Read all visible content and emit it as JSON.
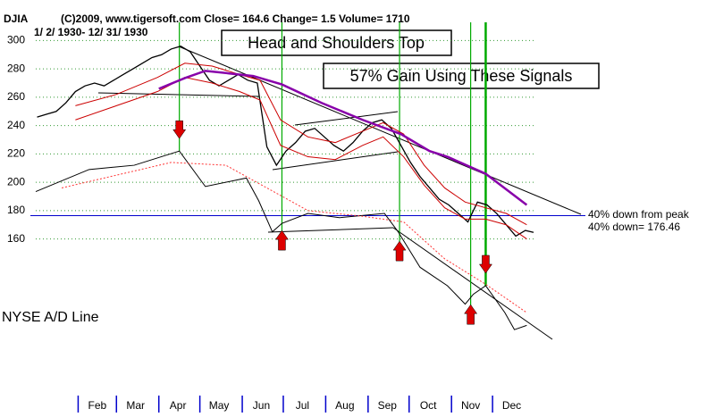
{
  "chart_data": {
    "type": "line",
    "title": "DJIA",
    "header": "(C)2009, www.tigersoft.com    Close= 164.6  Change= 1.5 Volume= 1710",
    "date_range": "1/ 2/ 1930- 12/ 31/ 1930",
    "annotations": [
      "Head and Shoulders Top",
      "57% Gain Using These Signals",
      "NYSE A/D Line"
    ],
    "reference_line": {
      "value": 176.46,
      "color": "#0000cc",
      "labels": [
        "40% down from peak",
        "40% down= 176.46"
      ]
    },
    "xlim": [
      1,
      365
    ],
    "ylim": [
      52,
      316
    ],
    "yticks": [
      160,
      180,
      200,
      220,
      240,
      260,
      280,
      300
    ],
    "xticks": [
      {
        "value": 32,
        "label": "Feb"
      },
      {
        "value": 60,
        "label": "Mar"
      },
      {
        "value": 91,
        "label": "Apr"
      },
      {
        "value": 121,
        "label": "May"
      },
      {
        "value": 152,
        "label": "Jun"
      },
      {
        "value": 182,
        "label": "Jul"
      },
      {
        "value": 213,
        "label": "Aug"
      },
      {
        "value": 244,
        "label": "Sep"
      },
      {
        "value": 274,
        "label": "Oct"
      },
      {
        "value": 305,
        "label": "Nov"
      },
      {
        "value": 335,
        "label": "Dec"
      }
    ],
    "grid": true,
    "series": [
      {
        "color": "#000000",
        "width": 1.3,
        "x": [
          2,
          9,
          16,
          23,
          30,
          37,
          44,
          51,
          58,
          65,
          72,
          79,
          86,
          93,
          100,
          107,
          114,
          121,
          128,
          135,
          142,
          149,
          156,
          163,
          170,
          177,
          184,
          191,
          198,
          205,
          212,
          219,
          226,
          233,
          240,
          247,
          254,
          261,
          268,
          275,
          282,
          289,
          296,
          303,
          310,
          317,
          324,
          331,
          338,
          345,
          352,
          359,
          365
        ],
        "values": [
          246,
          248,
          250,
          256,
          264,
          268,
          270,
          268,
          272,
          276,
          280,
          284,
          288,
          290,
          294,
          296,
          292,
          282,
          272,
          268,
          272,
          276,
          272,
          270,
          225,
          212,
          222,
          228,
          236,
          238,
          232,
          226,
          222,
          228,
          236,
          242,
          244,
          238,
          226,
          214,
          204,
          196,
          188,
          184,
          178,
          172,
          186,
          184,
          178,
          170,
          162,
          166,
          164.6
        ]
      },
      {
        "color": "#cc0000",
        "width": 1,
        "x": [
          30,
          60,
          90,
          110,
          130,
          150,
          165,
          180,
          200,
          220,
          240,
          255,
          270,
          285,
          300,
          315,
          330,
          345,
          360
        ],
        "values": [
          254,
          262,
          274,
          284,
          282,
          276,
          272,
          244,
          232,
          228,
          236,
          242,
          234,
          212,
          196,
          186,
          182,
          178,
          170
        ]
      },
      {
        "color": "#cc0000",
        "width": 1,
        "x": [
          30,
          60,
          90,
          110,
          130,
          150,
          165,
          180,
          200,
          220,
          240,
          255,
          270,
          285,
          300,
          315,
          330,
          345,
          360
        ],
        "values": [
          244,
          254,
          264,
          274,
          270,
          264,
          258,
          226,
          218,
          216,
          226,
          232,
          218,
          198,
          182,
          174,
          174,
          170,
          160
        ]
      },
      {
        "color": "#8800aa",
        "width": 2.5,
        "x": [
          91,
          110,
          125,
          160,
          181,
          210,
          240,
          268,
          289,
          302,
          330,
          360
        ],
        "values": [
          266,
          273.5,
          278.6,
          275,
          269,
          256,
          244,
          234,
          222,
          218,
          206,
          184
        ]
      },
      {
        "color": "#000000",
        "width": 1,
        "x": [
          1,
          40,
          73,
          106,
          125,
          155,
          164,
          174,
          181,
          200,
          223,
          256,
          266,
          282,
          302,
          315,
          321,
          330,
          344,
          351,
          360
        ],
        "values": [
          193.4,
          209,
          212,
          222,
          197,
          203,
          187,
          165,
          171,
          178,
          175,
          178,
          165,
          140,
          127,
          114,
          121,
          127,
          108,
          96,
          99
        ]
      },
      {
        "color": "#ff3333",
        "width": 1,
        "dash": "2,2",
        "x": [
          20,
          60,
          100,
          140,
          170,
          200,
          240,
          270,
          300,
          330,
          360
        ],
        "values": [
          196,
          205,
          214,
          212,
          196,
          180,
          176,
          172,
          146,
          128,
          108
        ]
      }
    ],
    "signals": [
      {
        "x": 106,
        "direction": "down"
      },
      {
        "x": 181,
        "direction": "up"
      },
      {
        "x": 267,
        "direction": "up"
      },
      {
        "x": 319,
        "direction": "up"
      },
      {
        "x": 330,
        "direction": "down"
      }
    ]
  }
}
